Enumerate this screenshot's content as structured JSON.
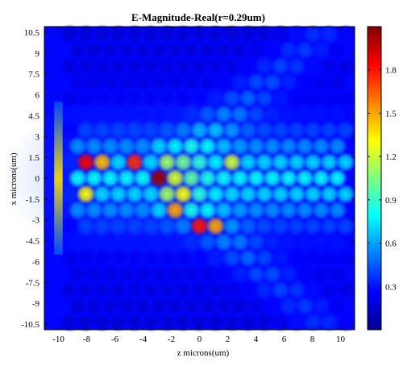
{
  "chart_data": {
    "type": "heatmap",
    "title": "E-Magnitude-Real(r=0.29um)",
    "xlabel": "z microns(um)",
    "ylabel": "x microns(um)",
    "xlim": [
      -11,
      11
    ],
    "ylim": [
      -10.9,
      10.9
    ],
    "x_ticks": [
      "-10",
      "-8",
      "-6",
      "-4",
      "-2",
      "0",
      "2",
      "4",
      "6",
      "8",
      "10"
    ],
    "y_ticks": [
      "10.5",
      "9",
      "7.5",
      "6",
      "4.5",
      "3",
      "1.5",
      "0",
      "-1.5",
      "-3",
      "-4.5",
      "-6",
      "-7.5",
      "-9",
      "-10.5"
    ],
    "colorbar": {
      "min": 0,
      "max": 2.1,
      "ticks": [
        "0.3",
        "0.6",
        "0.9",
        "1.2",
        "1.5",
        "1.8"
      ],
      "colormap": "jet"
    },
    "lattice_pitch_um": 1.15,
    "source_line": {
      "z": -10.0,
      "intensity": 0.65,
      "width_um": 0.6
    },
    "hotspots": [
      {
        "z": -2.9,
        "x": 0.0,
        "value": 2.05
      },
      {
        "z": -8.0,
        "x": 0.7,
        "value": 1.85
      },
      {
        "z": -5.0,
        "x": 0.7,
        "value": 1.75
      },
      {
        "z": 0.0,
        "x": -2.8,
        "value": 1.8
      },
      {
        "z": -2.2,
        "x": -2.0,
        "value": 1.5
      },
      {
        "z": 0.8,
        "x": -3.6,
        "value": 1.5
      },
      {
        "z": -7.0,
        "x": 1.4,
        "value": 1.45
      },
      {
        "z": -4.3,
        "x": 1.4,
        "value": 1.35
      },
      {
        "z": -8.0,
        "x": -0.7,
        "value": 1.3
      },
      {
        "z": -1.5,
        "x": -1.2,
        "value": 1.3
      },
      {
        "z": 2.7,
        "x": 0.7,
        "value": 1.2
      }
    ]
  }
}
